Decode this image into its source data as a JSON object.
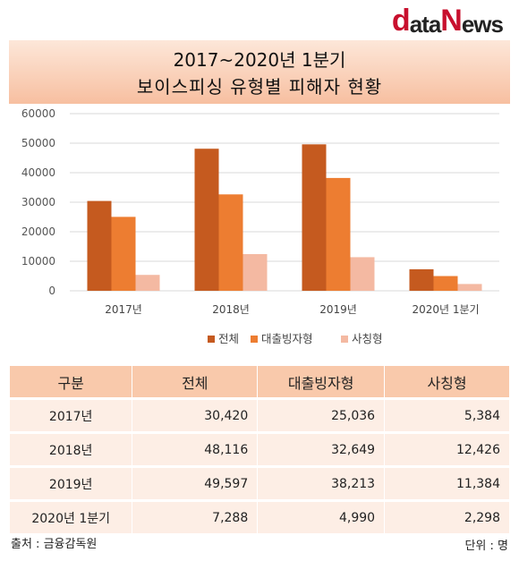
{
  "logo": {
    "part1": "d",
    "part2": "ata",
    "part3": "N",
    "part4": "ews"
  },
  "title": {
    "line1": "2017~2020년 1분기",
    "line2": "보이스피싱 유형별 피해자 현황"
  },
  "chart_data": {
    "type": "bar",
    "categories": [
      "2017년",
      "2018년",
      "2019년",
      "2020년  1분기"
    ],
    "series": [
      {
        "name": "전체",
        "color": "#c55a1f",
        "values": [
          30420,
          48116,
          49597,
          7288
        ]
      },
      {
        "name": "대출빙자형",
        "color": "#ed7d31",
        "values": [
          25036,
          32649,
          38213,
          4990
        ]
      },
      {
        "name": "사칭형",
        "color": "#f4b9a2",
        "values": [
          5384,
          12426,
          11384,
          2298
        ]
      }
    ],
    "ylim": [
      0,
      60000
    ],
    "yticks": [
      "0",
      "10000",
      "20000",
      "30000",
      "40000",
      "50000",
      "60000"
    ],
    "grid": true,
    "legend": "bottom"
  },
  "table": {
    "headers": [
      "구분",
      "전체",
      "대출빙자형",
      "사칭형"
    ],
    "rows": [
      [
        "2017년",
        "30,420",
        "25,036",
        "5,384"
      ],
      [
        "2018년",
        "48,116",
        "32,649",
        "12,426"
      ],
      [
        "2019년",
        "49,597",
        "38,213",
        "11,384"
      ],
      [
        "2020년  1분기",
        "7,288",
        "4,990",
        "2,298"
      ]
    ]
  },
  "footer": {
    "source": "출처 : 금융감독원",
    "unit": "단위 : 명"
  }
}
